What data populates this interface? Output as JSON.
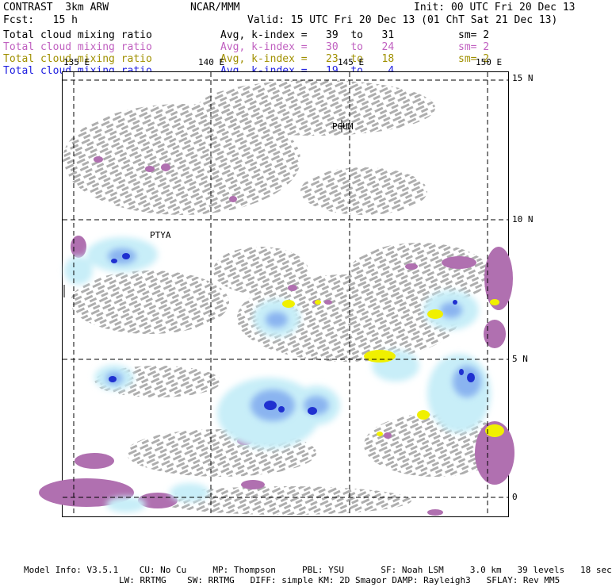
{
  "header": {
    "model": "CONTRAST  3km ARW",
    "org": "NCAR/MMM",
    "init": "Init: 00 UTC Fri 20 Dec 13",
    "fcst": "Fcst:   15 h",
    "valid": "Valid: 15 UTC Fri 20 Dec 13 (01 ChT Sat 21 Dec 13)"
  },
  "fields": [
    {
      "name": "Total cloud mixing ratio",
      "avg": "Avg, k-index =   39  to   31",
      "sm": "sm= 2",
      "color": "#000000"
    },
    {
      "name": "Total cloud mixing ratio",
      "avg": "Avg, k-index =   30  to   24",
      "sm": "sm= 2",
      "color": "#c060c0"
    },
    {
      "name": "Total cloud mixing ratio",
      "avg": "Avg, k-index =   23  to   18",
      "sm": "sm= 2",
      "color": "#a09000"
    },
    {
      "name": "Total cloud mixing ratio",
      "avg": "Avg, k-index =   19  to    4",
      "sm": "",
      "color": "#2020e0"
    }
  ],
  "map": {
    "lon_labels": [
      "135 E",
      "140 E",
      "145 E",
      "150 E"
    ],
    "lat_labels": [
      "15 N",
      "10 N",
      "5 N",
      "0"
    ],
    "stations": [
      "PGUM",
      "PTYA"
    ]
  },
  "footer": {
    "line1": "Model Info: V3.5.1    CU: No Cu     MP: Thompson     PBL: YSU       SF: Noah LSM     3.0 km   39 levels   18 sec",
    "line2": "LW: RRTMG    SW: RRTMG   DIFF: simple KM: 2D Smagor DAMP: Rayleigh3   SFLAY: Rev MM5"
  },
  "colors": {
    "gray_cloud": "#aaaaaa",
    "purple_cloud": "#b070b0",
    "yellow_cloud": "#f0f000",
    "light_blue": "#c8eef8",
    "mid_blue": "#8ab4f0",
    "deep_blue": "#2030d0"
  }
}
